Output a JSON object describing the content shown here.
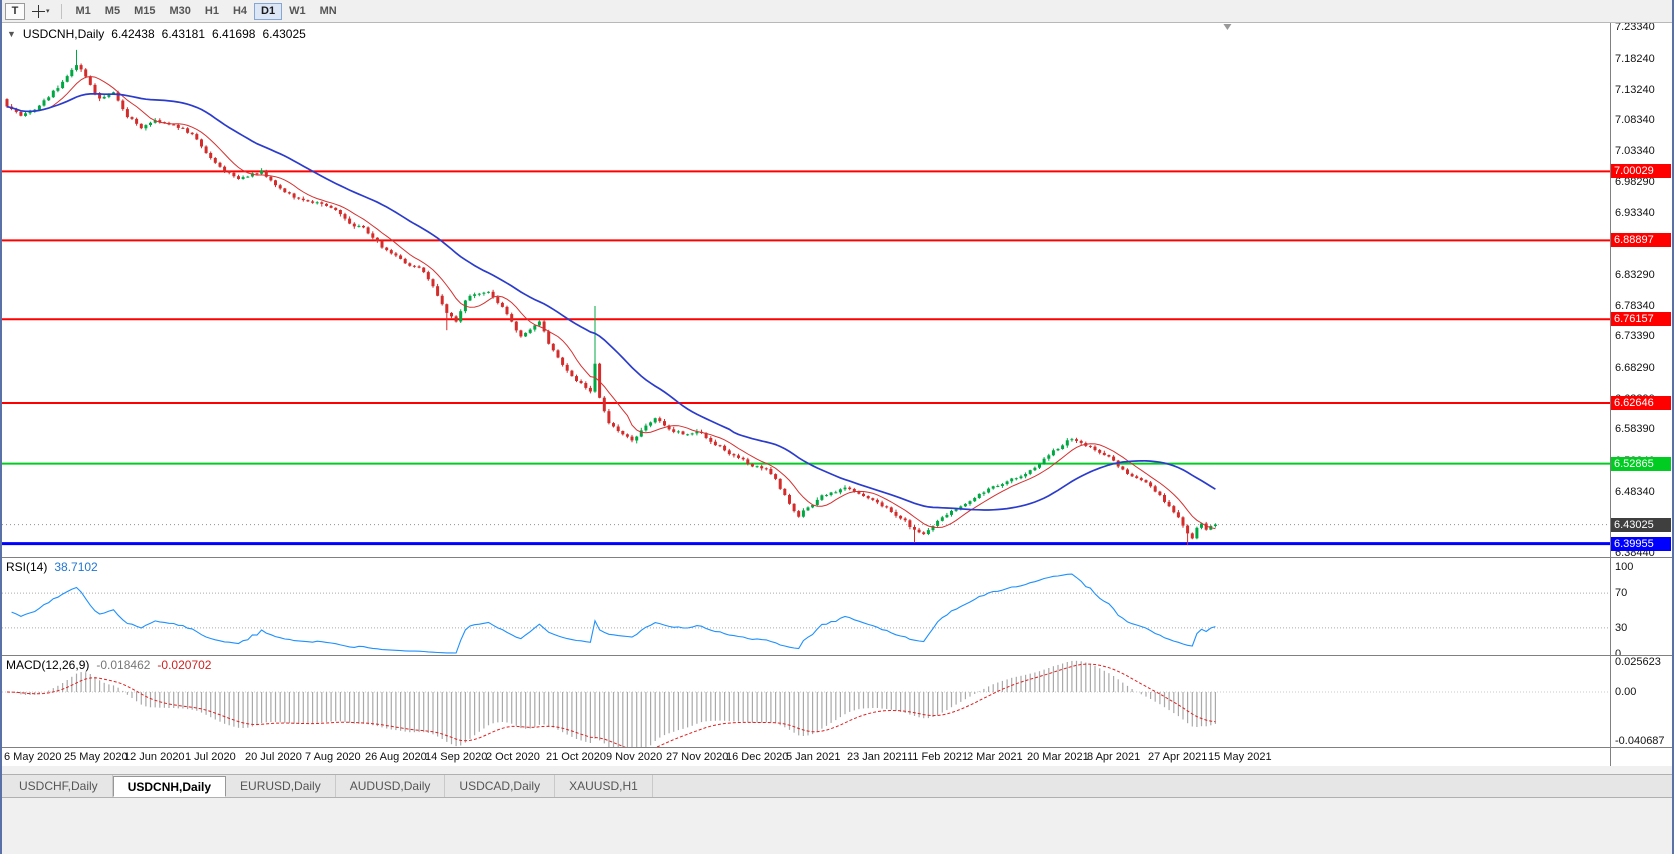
{
  "toolbar": {
    "buttons": [
      {
        "label": "T"
      }
    ],
    "cursor_tool": "crosshair",
    "timeframes": [
      "M1",
      "M5",
      "M15",
      "M30",
      "H1",
      "H4",
      "D1",
      "W1",
      "MN"
    ],
    "active_timeframe": "D1"
  },
  "title": {
    "symbol": "USDCNH,Daily",
    "open": "6.42438",
    "high": "6.43181",
    "low": "6.41698",
    "close": "6.43025"
  },
  "rsi_panel": {
    "label": "RSI(14)",
    "value": "38.7102",
    "ticks": [
      "100",
      "70",
      "30",
      "0"
    ]
  },
  "macd_panel": {
    "label": "MACD(12,26,9)",
    "main_value": "-0.018462",
    "signal_value": "-0.020702",
    "ticks": [
      "0.025623",
      "0.00",
      "-0.040687"
    ]
  },
  "tabs": [
    {
      "label": "USDCHF,Daily",
      "active": false
    },
    {
      "label": "USDCNH,Daily",
      "active": true
    },
    {
      "label": "EURUSD,Daily",
      "active": false
    },
    {
      "label": "AUDUSD,Daily",
      "active": false
    },
    {
      "label": "USDCAD,Daily",
      "active": false
    },
    {
      "label": "XAUUSD,H1",
      "active": false
    }
  ],
  "chart_data": {
    "type": "candlestick",
    "symbol": "USDCNH",
    "timeframe": "Daily",
    "last_ohlc": {
      "open": 6.42438,
      "high": 6.43181,
      "low": 6.41698,
      "close": 6.43025
    },
    "y_axis": {
      "top_price": 7.2399,
      "bottom_price": 6.3779,
      "ticks": [
        "7.23340",
        "7.18240",
        "7.13240",
        "7.08340",
        "7.03340",
        "6.98290",
        "6.93340",
        "6.88390",
        "6.83290",
        "6.78340",
        "6.73390",
        "6.68290",
        "6.63290",
        "6.58390",
        "6.53340",
        "6.48340",
        "6.43340",
        "6.38440"
      ]
    },
    "x_axis": {
      "bars_per_label": 13,
      "labels": [
        "6 May 2020",
        "25 May 2020",
        "12 Jun 2020",
        "1 Jul 2020",
        "20 Jul 2020",
        "7 Aug 2020",
        "26 Aug 2020",
        "14 Sep 2020",
        "2 Oct 2020",
        "21 Oct 2020",
        "9 Nov 2020",
        "27 Nov 2020",
        "16 Dec 2020",
        "5 Jan 2021",
        "23 Jan 2021",
        "11 Feb 2021",
        "2 Mar 2021",
        "20 Mar 2021",
        "8 Apr 2021",
        "27 Apr 2021",
        "15 May 2021"
      ]
    },
    "hlines": [
      {
        "price": 7.00029,
        "label": "7.00029",
        "color": "#FF0000",
        "width": 2
      },
      {
        "price": 6.88897,
        "label": "6.88897",
        "color": "#FF0000",
        "width": 2
      },
      {
        "price": 6.76157,
        "label": "6.76157",
        "color": "#FF0000",
        "width": 2
      },
      {
        "price": 6.62646,
        "label": "6.62646",
        "color": "#FF0000",
        "width": 2
      },
      {
        "price": 6.52865,
        "label": "6.52865",
        "color": "#00CC22",
        "width": 2
      },
      {
        "price": 6.39955,
        "label": "6.39955",
        "color": "#0000FF",
        "width": 3
      }
    ],
    "current_price": {
      "value": 6.43025,
      "label": "6.43025",
      "label_bg": "#3F3F3F"
    },
    "colors": {
      "up": "#00A843",
      "down": "#D42B2B",
      "ma_fast": "#D43030",
      "ma_slow": "#2B3CCC",
      "rsi": "#1E90FF",
      "macd_hist": "#A9A9A9",
      "macd_signal": "#E02020",
      "level_dotted": "#ABABAB"
    },
    "rsi": {
      "period": 14,
      "last": 38.7102,
      "levels": [
        70,
        30
      ],
      "range": [
        0,
        100
      ]
    },
    "macd": {
      "fast": 12,
      "slow": 26,
      "signal": 9,
      "last_main": -0.018462,
      "last_signal": -0.020702,
      "axis_max": 0.025623,
      "axis_min": -0.040687
    },
    "bars": 262,
    "price_anchors": [
      [
        0,
        7.105
      ],
      [
        3,
        7.09
      ],
      [
        6,
        7.1
      ],
      [
        9,
        7.12
      ],
      [
        12,
        7.145
      ],
      [
        15,
        7.172
      ],
      [
        16,
        7.165
      ],
      [
        18,
        7.14
      ],
      [
        20,
        7.118
      ],
      [
        23,
        7.128
      ],
      [
        26,
        7.088
      ],
      [
        29,
        7.07
      ],
      [
        32,
        7.083
      ],
      [
        35,
        7.076
      ],
      [
        38,
        7.07
      ],
      [
        41,
        7.052
      ],
      [
        44,
        7.022
      ],
      [
        47,
        7.0
      ],
      [
        50,
        6.988
      ],
      [
        52,
        6.992
      ],
      [
        55,
        7.002
      ],
      [
        58,
        6.978
      ],
      [
        62,
        6.958
      ],
      [
        65,
        6.952
      ],
      [
        68,
        6.948
      ],
      [
        71,
        6.938
      ],
      [
        74,
        6.916
      ],
      [
        77,
        6.91
      ],
      [
        80,
        6.888
      ],
      [
        83,
        6.868
      ],
      [
        86,
        6.852
      ],
      [
        89,
        6.845
      ],
      [
        92,
        6.815
      ],
      [
        95,
        6.772
      ],
      [
        97,
        6.758
      ],
      [
        99,
        6.792
      ],
      [
        101,
        6.802
      ],
      [
        104,
        6.806
      ],
      [
        106,
        6.788
      ],
      [
        108,
        6.77
      ],
      [
        111,
        6.734
      ],
      [
        113,
        6.745
      ],
      [
        115,
        6.758
      ],
      [
        117,
        6.722
      ],
      [
        120,
        6.688
      ],
      [
        123,
        6.662
      ],
      [
        126,
        6.645
      ],
      [
        127,
        6.69
      ],
      [
        128,
        6.635
      ],
      [
        130,
        6.594
      ],
      [
        133,
        6.576
      ],
      [
        135,
        6.566
      ],
      [
        138,
        6.59
      ],
      [
        140,
        6.602
      ],
      [
        143,
        6.584
      ],
      [
        146,
        6.576
      ],
      [
        149,
        6.58
      ],
      [
        152,
        6.564
      ],
      [
        155,
        6.55
      ],
      [
        158,
        6.538
      ],
      [
        161,
        6.524
      ],
      [
        164,
        6.52
      ],
      [
        166,
        6.504
      ],
      [
        168,
        6.478
      ],
      [
        170,
        6.452
      ],
      [
        171,
        6.443
      ],
      [
        173,
        6.458
      ],
      [
        175,
        6.47
      ],
      [
        178,
        6.482
      ],
      [
        181,
        6.49
      ],
      [
        184,
        6.48
      ],
      [
        187,
        6.47
      ],
      [
        190,
        6.458
      ],
      [
        193,
        6.44
      ],
      [
        196,
        6.422
      ],
      [
        198,
        6.415
      ],
      [
        200,
        6.428
      ],
      [
        202,
        6.442
      ],
      [
        205,
        6.455
      ],
      [
        208,
        6.468
      ],
      [
        211,
        6.482
      ],
      [
        213,
        6.492
      ],
      [
        216,
        6.5
      ],
      [
        219,
        6.508
      ],
      [
        222,
        6.522
      ],
      [
        225,
        6.542
      ],
      [
        228,
        6.558
      ],
      [
        230,
        6.568
      ],
      [
        232,
        6.562
      ],
      [
        234,
        6.556
      ],
      [
        236,
        6.546
      ],
      [
        238,
        6.54
      ],
      [
        240,
        6.524
      ],
      [
        242,
        6.512
      ],
      [
        245,
        6.502
      ],
      [
        247,
        6.492
      ],
      [
        249,
        6.478
      ],
      [
        251,
        6.46
      ],
      [
        253,
        6.442
      ],
      [
        255,
        6.416
      ],
      [
        256,
        6.408
      ],
      [
        257,
        6.425
      ],
      [
        258,
        6.432
      ],
      [
        259,
        6.422
      ],
      [
        260,
        6.428
      ],
      [
        261,
        6.43025
      ]
    ],
    "wick_overrides": [
      {
        "i": 15,
        "high": 7.1965
      },
      {
        "i": 95,
        "low": 6.744
      },
      {
        "i": 127,
        "high": 6.783
      },
      {
        "i": 196,
        "low": 6.401
      },
      {
        "i": 255,
        "low": 6.397
      }
    ]
  }
}
